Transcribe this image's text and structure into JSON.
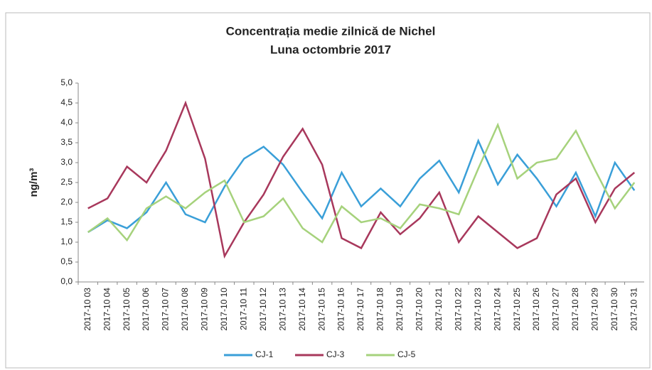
{
  "chart_data": {
    "type": "line",
    "title": "Concentrația medie zilnică de Nichel",
    "subtitle": "Luna octombrie 2017",
    "y_label": "ng/m³",
    "categories": [
      "2017-10 03",
      "2017-10 04",
      "2017-10 05",
      "2017-10 06",
      "2017-10 07",
      "2017-10 08",
      "2017-10 09",
      "2017-10 10",
      "2017-10 11",
      "2017-10 12",
      "2017-10 13",
      "2017-10 14",
      "2017-10 15",
      "2017-10 16",
      "2017-10 17",
      "2017-10 18",
      "2017-10 19",
      "2017-10 20",
      "2017-10 21",
      "2017-10 22",
      "2017-10 23",
      "2017-10 24",
      "2017-10 25",
      "2017-10 26",
      "2017-10 27",
      "2017-10 28",
      "2017-10 29",
      "2017-10 30",
      "2017-10 31"
    ],
    "series": [
      {
        "name": "CJ-1",
        "color": "#3a9fd8",
        "values": [
          1.25,
          1.55,
          1.35,
          1.75,
          2.5,
          1.7,
          1.5,
          2.4,
          3.1,
          3.4,
          2.95,
          2.25,
          1.6,
          2.75,
          1.9,
          2.35,
          1.9,
          2.6,
          3.05,
          2.25,
          3.55,
          2.45,
          3.2,
          2.6,
          1.9,
          2.75,
          1.65,
          3.0,
          2.3
        ]
      },
      {
        "name": "CJ-3",
        "color": "#a8385c",
        "values": [
          1.85,
          2.1,
          2.9,
          2.5,
          3.3,
          4.5,
          3.1,
          0.65,
          1.5,
          2.2,
          3.15,
          3.85,
          2.95,
          1.1,
          0.85,
          1.75,
          1.2,
          1.6,
          2.25,
          1.0,
          1.65,
          1.25,
          0.85,
          1.1,
          2.2,
          2.6,
          1.5,
          2.35,
          2.75
        ]
      },
      {
        "name": "CJ-5",
        "color": "#a6d27c",
        "values": [
          1.25,
          1.6,
          1.05,
          1.85,
          2.15,
          1.85,
          2.25,
          2.55,
          1.5,
          1.65,
          2.1,
          1.35,
          1.0,
          1.9,
          1.5,
          1.6,
          1.35,
          1.95,
          1.85,
          1.7,
          2.85,
          3.95,
          2.6,
          3.0,
          3.1,
          3.8,
          2.8,
          1.85,
          2.5
        ]
      }
    ],
    "ylim": [
      0,
      5
    ],
    "yticks": [
      {
        "value": 0,
        "label": "0,0"
      },
      {
        "value": 0.5,
        "label": "0,5"
      },
      {
        "value": 1,
        "label": "1,0"
      },
      {
        "value": 1.5,
        "label": "1,5"
      },
      {
        "value": 2,
        "label": "2,0"
      },
      {
        "value": 2.5,
        "label": "2,5"
      },
      {
        "value": 3,
        "label": "3,0"
      },
      {
        "value": 3.5,
        "label": "3,5"
      },
      {
        "value": 4,
        "label": "4,0"
      },
      {
        "value": 4.5,
        "label": "4,5"
      },
      {
        "value": 5,
        "label": "5,0"
      }
    ],
    "grid": false,
    "legend": "bottom"
  }
}
